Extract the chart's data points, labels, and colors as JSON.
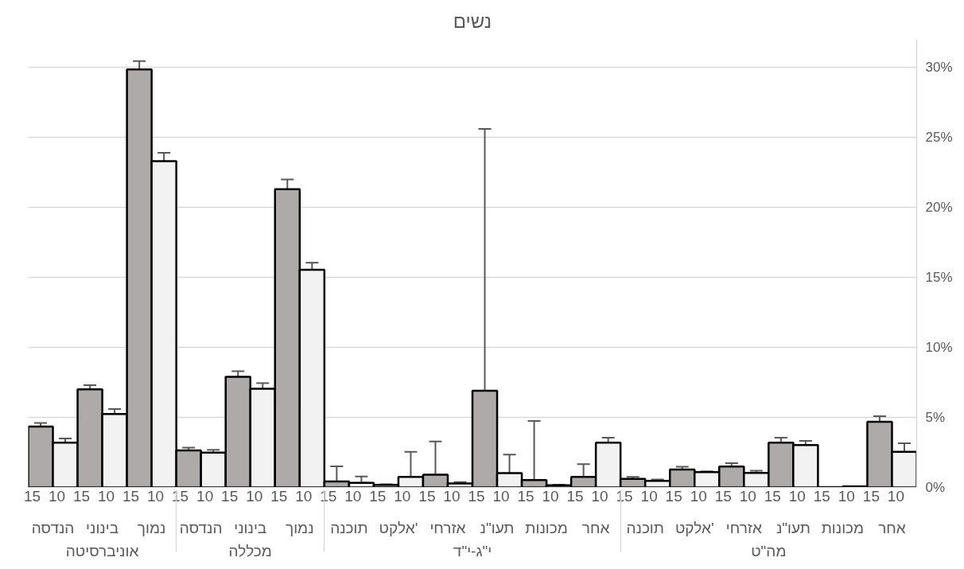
{
  "chart_data": {
    "type": "bar",
    "title": "נשים",
    "categories": [
      "15",
      "10",
      "15",
      "10",
      "15",
      "10",
      "15",
      "10",
      "15",
      "10",
      "15",
      "10",
      "15",
      "10",
      "15",
      "10",
      "15",
      "10",
      "15",
      "10",
      "15",
      "10",
      "15",
      "10",
      "15",
      "10",
      "15",
      "10",
      "15",
      "10",
      "15",
      "10",
      "15",
      "10",
      "15",
      "10"
    ],
    "values": [
      4.35,
      3.2,
      7.0,
      5.25,
      29.85,
      23.3,
      2.64,
      2.48,
      7.9,
      7.05,
      21.3,
      15.55,
      0.42,
      0.33,
      0.18,
      0.75,
      0.91,
      0.29,
      6.9,
      1.02,
      0.53,
      0.15,
      0.75,
      3.2,
      0.61,
      0.47,
      1.28,
      1.1,
      1.49,
      1.04,
      3.2,
      3.02,
      0.02,
      0.07,
      4.69,
      2.55
    ],
    "colors": [
      "#aeaaaa",
      "#f2f2f2",
      "#aeaaaa",
      "#f2f2f2",
      "#aeaaaa",
      "#f2f2f2",
      "#aeaaaa",
      "#f2f2f2",
      "#aeaaaa",
      "#f2f2f2",
      "#aeaaaa",
      "#f2f2f2",
      "#aeaaaa",
      "#f2f2f2",
      "#aeaaaa",
      "#f2f2f2",
      "#aeaaaa",
      "#f2f2f2",
      "#aeaaaa",
      "#f2f2f2",
      "#aeaaaa",
      "#f2f2f2",
      "#aeaaaa",
      "#f2f2f2",
      "#aeaaaa",
      "#f2f2f2",
      "#aeaaaa",
      "#f2f2f2",
      "#aeaaaa",
      "#f2f2f2",
      "#aeaaaa",
      "#f2f2f2",
      "#aeaaaa",
      "#f2f2f2",
      "#aeaaaa",
      "#f2f2f2"
    ],
    "errors": [
      0.25,
      0.3,
      0.3,
      0.35,
      0.6,
      0.6,
      0.2,
      0.2,
      0.4,
      0.4,
      0.7,
      0.5,
      [
        0,
        1.5
      ],
      [
        0.33,
        0.78
      ],
      0.05,
      [
        0,
        2.55
      ],
      [
        0,
        3.28
      ],
      0.1,
      [
        0,
        25.6
      ],
      [
        0,
        2.35
      ],
      [
        0,
        4.74
      ],
      0.05,
      [
        0,
        1.66
      ],
      0.35,
      0.15,
      0.1,
      0.2,
      0.05,
      0.25,
      0.15,
      0.35,
      0.3,
      null,
      null,
      0.4,
      0.6
    ],
    "annotations": [
      "הנדסה",
      "בינוני",
      "נמוך",
      "הנדסה",
      "בינוני",
      "נמוך",
      "תוכנה",
      "אלקט'",
      "אזרחי",
      "תעו\"נ",
      "מכונות",
      "אחר",
      "תוכנה",
      "אלקט'",
      "אזרחי",
      "תעו\"נ",
      "מכונות",
      "אחר",
      "אוניברסיטה",
      "מכללה",
      "י\"ג-י\"ד",
      "מה\"ט"
    ],
    "ylim": [
      0,
      32
    ],
    "yticks": [
      {
        "value": 0,
        "label": "0%"
      },
      {
        "value": 5,
        "label": "5%"
      },
      {
        "value": 10,
        "label": "10%"
      },
      {
        "value": 15,
        "label": "15%"
      },
      {
        "value": 20,
        "label": "20%"
      },
      {
        "value": 25,
        "label": "25%"
      },
      {
        "value": 30,
        "label": "30%"
      }
    ],
    "grid": "y"
  }
}
